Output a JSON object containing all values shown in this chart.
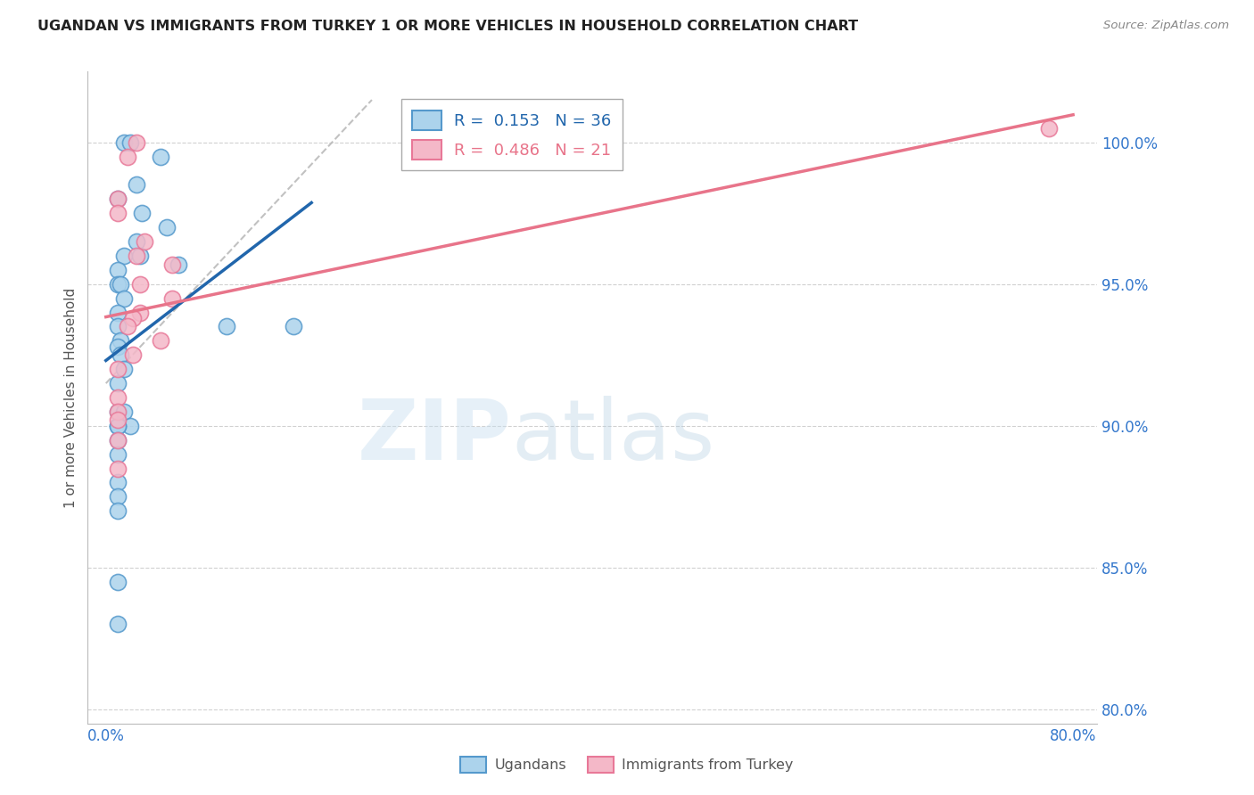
{
  "title": "UGANDAN VS IMMIGRANTS FROM TURKEY 1 OR MORE VEHICLES IN HOUSEHOLD CORRELATION CHART",
  "source": "Source: ZipAtlas.com",
  "ylabel": "1 or more Vehicles in Household",
  "legend_label_1": "Ugandans",
  "legend_label_2": "Immigrants from Turkey",
  "r_ugandan": 0.153,
  "n_ugandan": 36,
  "r_turkey": 0.486,
  "n_turkey": 21,
  "xlim": [
    -1.5,
    82.0
  ],
  "ylim": [
    79.5,
    102.5
  ],
  "x_tick_positions": [
    0.0,
    80.0
  ],
  "x_tick_labels": [
    "0.0%",
    "80.0%"
  ],
  "y_ticks": [
    80.0,
    85.0,
    90.0,
    95.0,
    100.0
  ],
  "watermark_zip": "ZIP",
  "watermark_atlas": "atlas",
  "ugandan_points_x": [
    1.5,
    2.0,
    4.5,
    2.5,
    1.0,
    3.0,
    5.0,
    2.5,
    1.5,
    2.8,
    6.0,
    1.0,
    1.0,
    1.2,
    1.5,
    1.0,
    1.0,
    1.2,
    1.0,
    1.2,
    1.5,
    1.0,
    1.0,
    1.5,
    2.0,
    10.0,
    1.0,
    1.0,
    1.0,
    1.0,
    1.0,
    15.5,
    1.0,
    1.0,
    1.0,
    1.0
  ],
  "ugandan_points_y": [
    100.0,
    100.0,
    99.5,
    98.5,
    98.0,
    97.5,
    97.0,
    96.5,
    96.0,
    96.0,
    95.7,
    95.5,
    95.0,
    95.0,
    94.5,
    94.0,
    93.5,
    93.0,
    92.8,
    92.5,
    92.0,
    91.5,
    90.5,
    90.5,
    90.0,
    93.5,
    90.0,
    90.0,
    89.5,
    89.0,
    88.0,
    93.5,
    87.5,
    87.0,
    84.5,
    83.0
  ],
  "turkey_points_x": [
    2.5,
    1.8,
    1.0,
    1.0,
    3.2,
    2.5,
    5.5,
    2.8,
    5.5,
    2.8,
    2.2,
    1.8,
    4.5,
    2.2,
    1.0,
    1.0,
    1.0,
    1.0,
    1.0,
    1.0,
    78.0
  ],
  "turkey_points_y": [
    100.0,
    99.5,
    98.0,
    97.5,
    96.5,
    96.0,
    95.7,
    95.0,
    94.5,
    94.0,
    93.8,
    93.5,
    93.0,
    92.5,
    92.0,
    91.0,
    90.5,
    90.2,
    89.5,
    88.5,
    100.5
  ],
  "color_ugandan": "#acd3ec",
  "color_turkey": "#f4b8c8",
  "edge_color_ugandan": "#5599cc",
  "edge_color_turkey": "#e87898",
  "trend_color_ugandan": "#2166ac",
  "trend_color_turkey": "#e8748a",
  "trend_dashed_color": "#bbbbbb",
  "grid_color": "#cccccc",
  "title_color": "#222222",
  "axis_label_color": "#555555",
  "right_tick_color": "#3377cc",
  "bottom_tick_color": "#3377cc",
  "source_color": "#888888",
  "legend_box_edge": "#aaaaaa"
}
